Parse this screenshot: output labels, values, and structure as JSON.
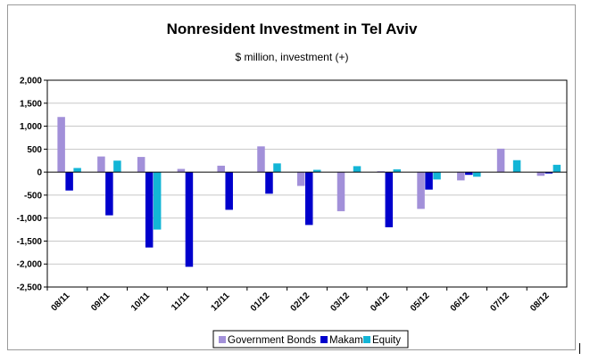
{
  "chart_data": {
    "type": "bar",
    "title": "Nonresident Investment in Tel Aviv",
    "subtitle": "$ million, investment (+)",
    "xlabel": "",
    "ylabel": "",
    "ylim": [
      -2500,
      2000
    ],
    "yticks": [
      2000,
      1500,
      1000,
      500,
      0,
      -500,
      -1000,
      -1500,
      -2000,
      -2500
    ],
    "ytick_labels": [
      "2,000",
      "1,500",
      "1,000",
      "500",
      "0",
      "-500",
      "-1,000",
      "-1,500",
      "-2,000",
      "-2,500"
    ],
    "grid": true,
    "legend_position": "bottom",
    "categories": [
      "08/11",
      "09/11",
      "10/11",
      "11/11",
      "12/11",
      "01/12",
      "02/12",
      "03/12",
      "04/12",
      "05/12",
      "06/12",
      "07/12",
      "08/12"
    ],
    "series": [
      {
        "name": "Government Bonds",
        "color": "#a290d9",
        "values": [
          1200,
          340,
          330,
          70,
          140,
          560,
          -300,
          -850,
          20,
          -800,
          -180,
          510,
          -80
        ]
      },
      {
        "name": "Makam",
        "color": "#0000cc",
        "values": [
          -400,
          -940,
          -1640,
          -2060,
          -820,
          -470,
          -1150,
          0,
          -1200,
          -380,
          -60,
          0,
          -30
        ]
      },
      {
        "name": "Equity",
        "color": "#13b5d6",
        "values": [
          90,
          250,
          -1250,
          0,
          0,
          190,
          50,
          130,
          60,
          -160,
          -100,
          260,
          160
        ]
      }
    ]
  }
}
